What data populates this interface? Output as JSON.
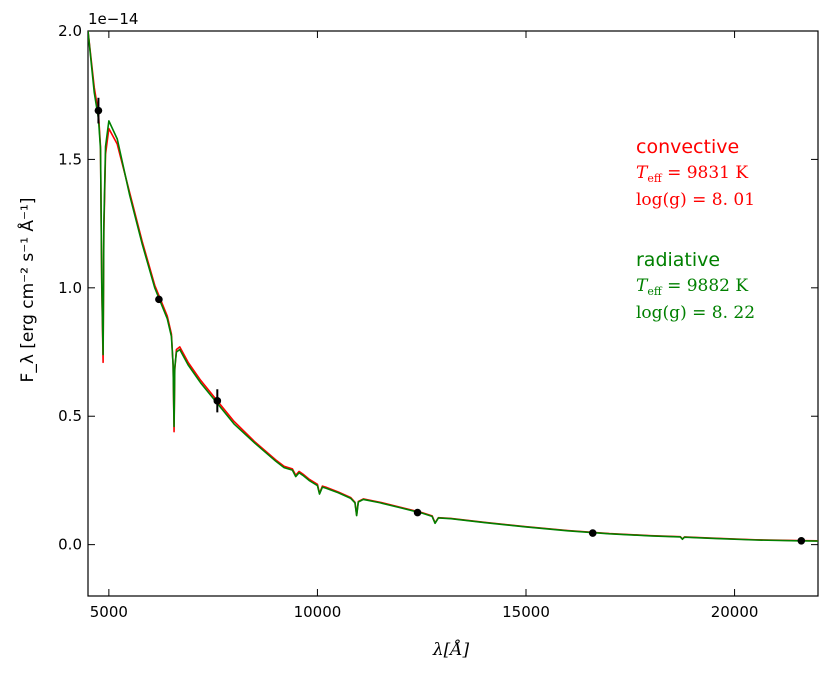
{
  "chart_data": {
    "type": "line",
    "xlabel": "λ[Å]",
    "ylabel": "F_λ [erg cm⁻² s⁻¹ Å⁻¹]",
    "y_offset_label": "1e−14",
    "y_scale": 1e-14,
    "xlim": [
      4500,
      22000
    ],
    "ylim": [
      -0.2,
      2.0
    ],
    "xticks": [
      5000,
      10000,
      15000,
      20000
    ],
    "xtick_labels": [
      "5000",
      "10000",
      "15000",
      "20000"
    ],
    "yticks": [
      0.0,
      0.5,
      1.0,
      1.5,
      2.0
    ],
    "ytick_labels": [
      "0.0",
      "0.5",
      "1.0",
      "1.5",
      "2.0"
    ],
    "grid": false,
    "series": [
      {
        "name": "convective",
        "color": "#ff0000",
        "x": [
          4500,
          4650,
          4750,
          4800,
          4830,
          4862,
          4880,
          4920,
          5000,
          5200,
          5500,
          5800,
          6100,
          6400,
          6500,
          6540,
          6563,
          6580,
          6620,
          6700,
          6900,
          7200,
          7600,
          8000,
          8500,
          9000,
          9200,
          9400,
          9480,
          9560,
          9650,
          9800,
          10000,
          10050,
          10120,
          10200,
          10500,
          10800,
          10900,
          10940,
          10980,
          11100,
          11500,
          12000,
          12500,
          12750,
          12820,
          12900,
          13200,
          14000,
          15000,
          16000,
          17000,
          18000,
          18700,
          18750,
          18800,
          19500,
          20500,
          21500,
          22000
        ],
        "values": [
          2.0,
          1.78,
          1.68,
          1.55,
          1.0,
          0.71,
          1.22,
          1.52,
          1.62,
          1.56,
          1.37,
          1.18,
          1.01,
          0.89,
          0.82,
          0.7,
          0.44,
          0.68,
          0.76,
          0.77,
          0.71,
          0.64,
          0.56,
          0.48,
          0.4,
          0.33,
          0.305,
          0.295,
          0.27,
          0.285,
          0.275,
          0.255,
          0.235,
          0.2,
          0.228,
          0.224,
          0.205,
          0.183,
          0.165,
          0.115,
          0.168,
          0.178,
          0.165,
          0.145,
          0.125,
          0.112,
          0.085,
          0.105,
          0.102,
          0.087,
          0.07,
          0.055,
          0.043,
          0.035,
          0.031,
          0.022,
          0.03,
          0.025,
          0.019,
          0.016,
          0.015
        ]
      },
      {
        "name": "radiative",
        "color": "#008000",
        "x": [
          4500,
          4650,
          4750,
          4800,
          4830,
          4862,
          4880,
          4920,
          5000,
          5200,
          5500,
          5800,
          6100,
          6400,
          6500,
          6540,
          6563,
          6580,
          6620,
          6700,
          6900,
          7200,
          7600,
          8000,
          8500,
          9000,
          9200,
          9400,
          9480,
          9560,
          9650,
          9800,
          10000,
          10050,
          10120,
          10200,
          10500,
          10800,
          10900,
          10940,
          10980,
          11100,
          11500,
          12000,
          12500,
          12750,
          12820,
          12900,
          13200,
          14000,
          15000,
          16000,
          17000,
          18000,
          18700,
          18750,
          18800,
          19500,
          20500,
          21500,
          22000
        ],
        "values": [
          2.0,
          1.76,
          1.66,
          1.54,
          1.02,
          0.74,
          1.25,
          1.55,
          1.65,
          1.58,
          1.36,
          1.17,
          1.0,
          0.88,
          0.81,
          0.7,
          0.46,
          0.69,
          0.75,
          0.76,
          0.7,
          0.63,
          0.55,
          0.47,
          0.395,
          0.325,
          0.3,
          0.29,
          0.265,
          0.28,
          0.27,
          0.25,
          0.23,
          0.197,
          0.224,
          0.22,
          0.202,
          0.18,
          0.163,
          0.113,
          0.166,
          0.176,
          0.163,
          0.143,
          0.123,
          0.11,
          0.083,
          0.104,
          0.101,
          0.086,
          0.069,
          0.054,
          0.042,
          0.034,
          0.03,
          0.021,
          0.029,
          0.024,
          0.018,
          0.015,
          0.014
        ]
      }
    ],
    "photometry": {
      "color": "#000000",
      "x": [
        4750,
        6200,
        7600,
        12400,
        16600,
        21600
      ],
      "values": [
        1.69,
        0.955,
        0.56,
        0.125,
        0.045,
        0.015
      ],
      "errors": [
        0.05,
        0.0,
        0.045,
        0.0,
        0.0,
        0.0
      ]
    },
    "annotations": [
      {
        "color": "#ff0000",
        "name": "convective",
        "teff_label": "T",
        "teff_subscript": "eff",
        "teff_value": " = 9831 K",
        "logg_text": "log(g) = 8. 01"
      },
      {
        "color": "#008000",
        "name": "radiative",
        "teff_label": "T",
        "teff_subscript": "eff",
        "teff_value": " = 9882 K",
        "logg_text": "log(g) = 8. 22"
      }
    ]
  }
}
